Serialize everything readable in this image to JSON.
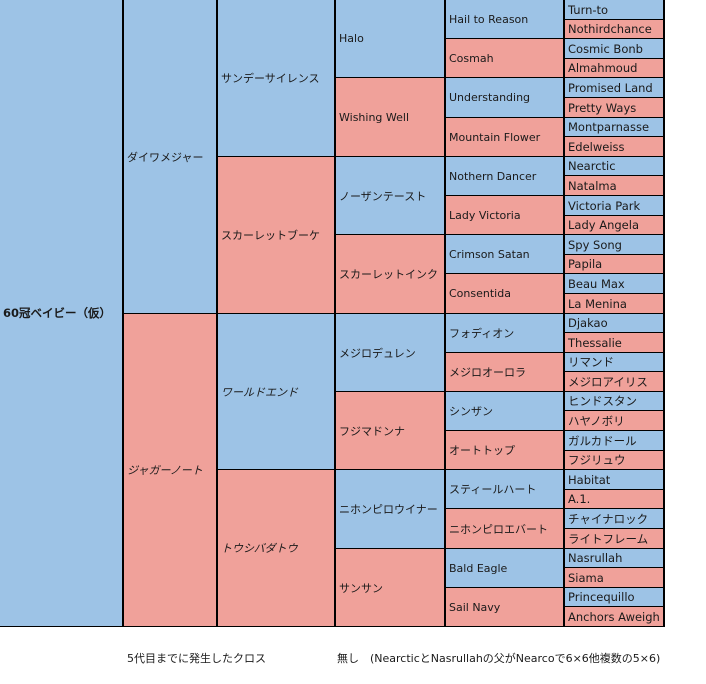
{
  "colors": {
    "sire": "#9dc3e6",
    "dam": "#f0a19a",
    "border": "#000000"
  },
  "pedigree": {
    "root": "60冠ベイビー（仮）",
    "gen1": [
      "ダイワメジャー",
      "ジャガーノート"
    ],
    "gen2": [
      "サンデーサイレンス",
      "スカーレットブーケ",
      "ワールドエンド",
      "トウシバダトウ"
    ],
    "gen3": [
      "Halo",
      "Wishing Well",
      "ノーザンテースト",
      "スカーレットインク",
      "メジロデュレン",
      "フジマドンナ",
      "ニホンピロウイナー",
      "サンサン"
    ],
    "gen4": [
      "Hail to Reason",
      "Cosmah",
      "Understanding",
      "Mountain Flower",
      "Nothern Dancer",
      "Lady Victoria",
      "Crimson Satan",
      "Consentida",
      "フォディオン",
      "メジロオーロラ",
      "シンザン",
      "オートトップ",
      "スティールハート",
      "ニホンピロエバート",
      "Bald Eagle",
      "Sail Navy"
    ],
    "gen5": [
      "Turn-to",
      "Nothirdchance",
      "Cosmic Bonb",
      "Almahmoud",
      "Promised Land",
      "Pretty Ways",
      "Montparnasse",
      "Edelweiss",
      "Nearctic",
      "Natalma",
      "Victoria Park",
      "Lady Angela",
      "Spy Song",
      "Papila",
      "Beau Max",
      "La Menina",
      "Djakao",
      "Thessalie",
      "リマンド",
      "メジロアイリス",
      "ヒンドスタン",
      "ハヤノボリ",
      "ガルカドール",
      "フジリュウ",
      "Habitat",
      "A.1.",
      "チャイナロック",
      "ライトフレーム",
      "Nasrullah",
      "Siama",
      "Princequillo",
      "Anchors Aweigh"
    ]
  },
  "footer": {
    "label": "5代目までに発生したクロス",
    "result": "無し　(NearcticとNasrullahの父がNearcoで6×6他複数の5×6)"
  }
}
